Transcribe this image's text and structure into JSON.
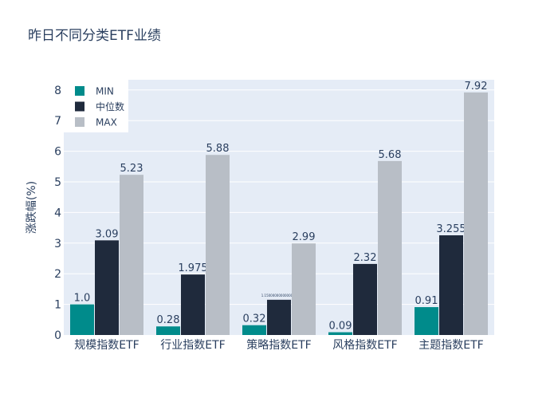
{
  "chart_data": {
    "type": "bar",
    "title": "昨日不同分类ETF业绩",
    "xlabel": "",
    "ylabel": "涨跌幅(%)",
    "ylim": [
      0,
      8.3
    ],
    "yticks": [
      0,
      1,
      2,
      3,
      4,
      5,
      6,
      7,
      8
    ],
    "grid": true,
    "legend_position": "top-left",
    "categories": [
      "规模指数ETF",
      "行业指数ETF",
      "策略指数ETF",
      "风格指数ETF",
      "主题指数ETF"
    ],
    "series": [
      {
        "name": "MIN",
        "color": "#008b8b",
        "values": [
          1.0,
          0.28,
          0.32,
          0.09,
          0.91
        ],
        "labels": [
          "1.0",
          "0.28",
          "0.32",
          "0.09",
          "0.91"
        ]
      },
      {
        "name": "中位数",
        "color": "#1f2a3c",
        "values": [
          3.09,
          1.975,
          1.15,
          2.32,
          3.255
        ],
        "labels": [
          "3.09",
          "1.975",
          "1.1500000000000001",
          "2.32",
          "3.255"
        ]
      },
      {
        "name": "MAX",
        "color": "#b8bec6",
        "values": [
          5.23,
          5.88,
          2.99,
          5.68,
          7.92
        ],
        "labels": [
          "5.23",
          "5.88",
          "2.99",
          "5.68",
          "7.92"
        ]
      }
    ]
  }
}
